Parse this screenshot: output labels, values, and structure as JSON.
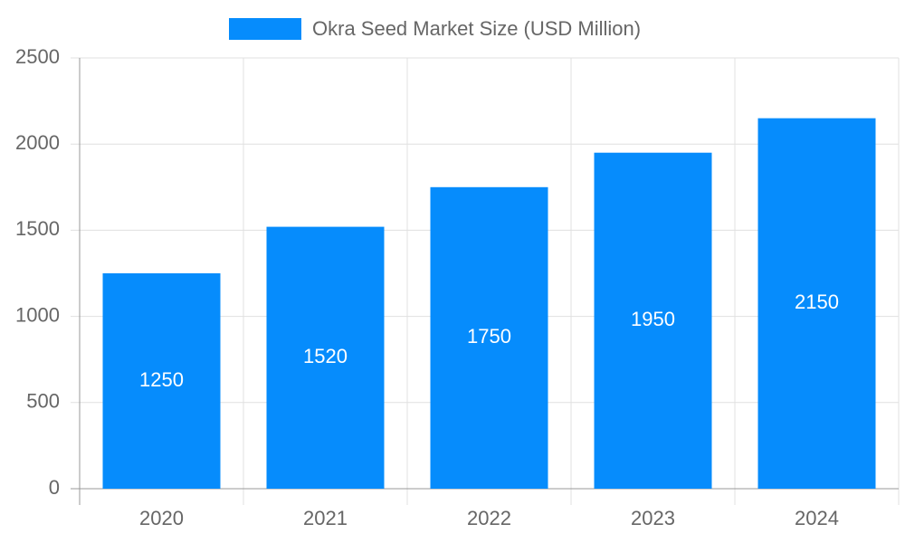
{
  "chart_data": {
    "type": "bar",
    "categories": [
      "2020",
      "2021",
      "2022",
      "2023",
      "2024"
    ],
    "series": [
      {
        "name": "Okra Seed Market Size (USD Million)",
        "color": "#068cfc",
        "values": [
          1250,
          1520,
          1750,
          1950,
          2150
        ]
      }
    ],
    "ylim": [
      0,
      2500
    ],
    "yticks": [
      0,
      500,
      1000,
      1500,
      2000,
      2500
    ],
    "grid": true,
    "legend": "top",
    "value_label_color": "#ffffff"
  }
}
